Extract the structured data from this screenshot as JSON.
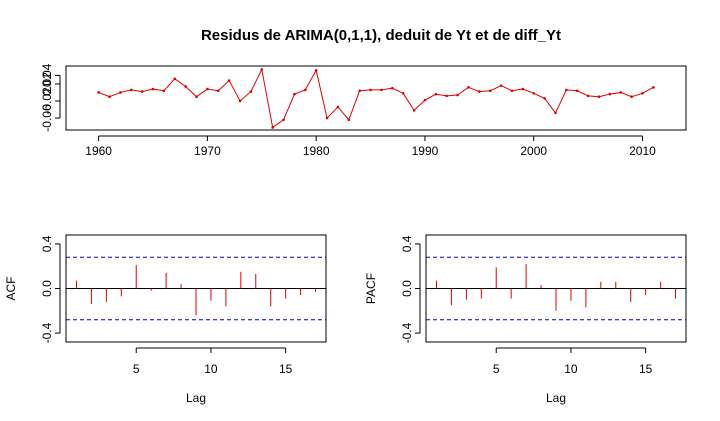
{
  "title": "Residus de ARIMA(0,1,1), deduit de Yt et de diff_Yt",
  "colors": {
    "series": "#e00000",
    "ci": "#0000cc",
    "axis": "#000000"
  },
  "chart_data": [
    {
      "type": "line",
      "id": "residuals",
      "x": [
        1960,
        1961,
        1962,
        1963,
        1964,
        1965,
        1966,
        1967,
        1968,
        1969,
        1970,
        1971,
        1972,
        1973,
        1974,
        1975,
        1976,
        1977,
        1978,
        1979,
        1980,
        1981,
        1982,
        1983,
        1984,
        1985,
        1986,
        1987,
        1988,
        1989,
        1990,
        1991,
        1992,
        1993,
        1994,
        1995,
        1996,
        1997,
        1998,
        1999,
        2000,
        2001,
        2002,
        2003,
        2004,
        2005,
        2006,
        2007,
        2008,
        2009,
        2010,
        2011
      ],
      "y": [
        0.0,
        -0.01,
        0.0,
        0.006,
        0.002,
        0.008,
        0.004,
        0.032,
        0.014,
        -0.01,
        0.008,
        0.004,
        0.028,
        -0.02,
        0.002,
        0.054,
        -0.082,
        -0.064,
        -0.004,
        0.006,
        0.052,
        -0.06,
        -0.034,
        -0.064,
        0.004,
        0.006,
        0.006,
        0.01,
        -0.002,
        -0.042,
        -0.018,
        -0.004,
        -0.008,
        -0.006,
        0.012,
        0.002,
        0.004,
        0.016,
        0.004,
        0.008,
        -0.002,
        -0.014,
        -0.048,
        0.006,
        0.004,
        -0.008,
        -0.01,
        -0.004,
        0.0,
        -0.01,
        -0.002,
        0.012
      ],
      "xlim": [
        1957,
        2014
      ],
      "ylim": [
        -0.088,
        0.062
      ],
      "x_ticks": [
        "1960",
        "1970",
        "1980",
        "1990",
        "2000",
        "2010"
      ],
      "y_ticks": [
        "-0.06",
        "-0.02",
        "0.02",
        "0.04"
      ]
    },
    {
      "type": "bar",
      "id": "acf",
      "ylabel": "ACF",
      "xlabel": "Lag",
      "lags": [
        1,
        2,
        3,
        4,
        5,
        6,
        7,
        8,
        9,
        10,
        11,
        12,
        13,
        14,
        15,
        16,
        17
      ],
      "values": [
        0.07,
        -0.14,
        -0.12,
        -0.07,
        0.21,
        -0.02,
        0.14,
        0.04,
        -0.24,
        -0.11,
        -0.16,
        0.15,
        0.13,
        -0.16,
        -0.09,
        -0.06,
        -0.03
      ],
      "ci": 0.28,
      "xlim": [
        0.3,
        17.7
      ],
      "ylim": [
        -0.48,
        0.48
      ],
      "x_ticks": [
        "5",
        "10",
        "15"
      ],
      "y_ticks": [
        "-0.4",
        "0.0",
        "0.4"
      ]
    },
    {
      "type": "bar",
      "id": "pacf",
      "ylabel": "PACF",
      "xlabel": "Lag",
      "lags": [
        1,
        2,
        3,
        4,
        5,
        6,
        7,
        8,
        9,
        10,
        11,
        12,
        13,
        14,
        15,
        16,
        17
      ],
      "values": [
        0.07,
        -0.15,
        -0.1,
        -0.09,
        0.19,
        -0.09,
        0.22,
        0.03,
        -0.2,
        -0.11,
        -0.17,
        0.06,
        0.06,
        -0.12,
        -0.06,
        0.06,
        -0.09
      ],
      "ci": 0.28,
      "xlim": [
        0.3,
        17.7
      ],
      "ylim": [
        -0.48,
        0.48
      ],
      "x_ticks": [
        "5",
        "10",
        "15"
      ],
      "y_ticks": [
        "-0.4",
        "0.0",
        "0.4"
      ]
    }
  ]
}
